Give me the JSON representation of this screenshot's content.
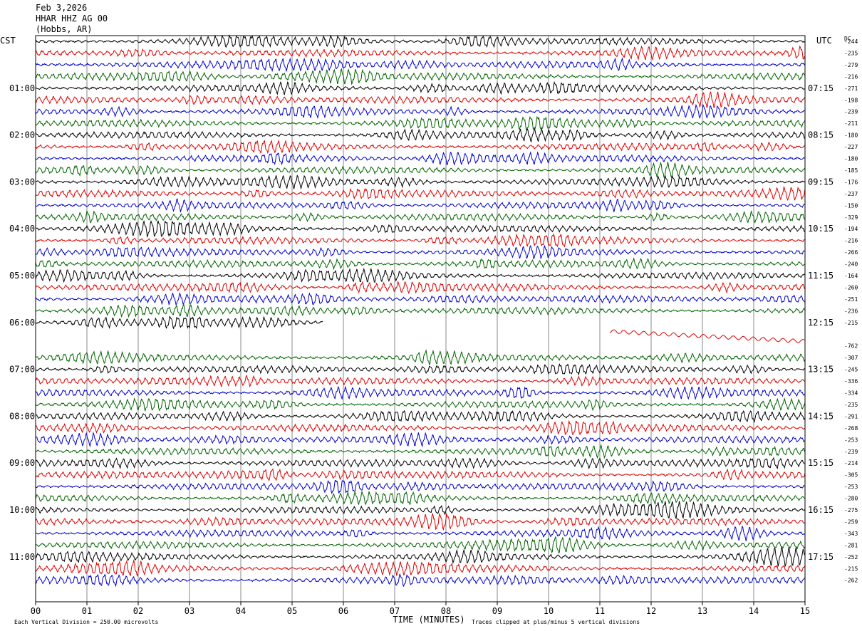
{
  "header": {
    "date": "Feb 3,2026",
    "station": "HHAR HHZ AG 00",
    "location": "(Hobbs, AR)"
  },
  "chart_data": {
    "type": "line",
    "title": "Feb 3,2026",
    "left_tz": "CST",
    "right_tz": "UTC",
    "dc_header": "DC",
    "xlabel": "TIME (MINUTES)",
    "x_ticks": [
      "00",
      "01",
      "02",
      "03",
      "04",
      "05",
      "06",
      "07",
      "08",
      "09",
      "10",
      "11",
      "12",
      "13",
      "14",
      "15"
    ],
    "xlim": [
      0,
      15
    ],
    "left_hour_labels": [
      "01:00",
      "02:00",
      "03:00",
      "04:00",
      "05:00",
      "06:00",
      "07:00",
      "08:00",
      "09:00",
      "10:00",
      "11:00"
    ],
    "right_hour_labels": [
      "07:15",
      "08:15",
      "09:15",
      "10:15",
      "11:15",
      "12:15",
      "13:15",
      "14:15",
      "15:15",
      "16:15",
      "17:15"
    ],
    "trace_colors": [
      "#000000",
      "#e00000",
      "#0000cc",
      "#006400"
    ],
    "dc_offsets": [
      -244,
      -235,
      -279,
      -216,
      -271,
      -198,
      -239,
      -211,
      -180,
      -227,
      -180,
      -185,
      -176,
      -237,
      -150,
      -329,
      -194,
      -216,
      -266,
      -240,
      -164,
      -260,
      -251,
      -236,
      -215,
      null,
      -762,
      -307,
      -245,
      -336,
      -334,
      -235,
      -291,
      -268,
      -253,
      -239,
      -214,
      -305,
      -253,
      -280,
      -275,
      -259,
      -343,
      -281,
      -252,
      -215,
      -262
    ],
    "gap_note": "trace row 24 ends at minute 5.6; row 25 starts at minute 11.2; row 26 blank",
    "scale_note": "Each Vertical Division =  250.00 microvolts",
    "clip_note": "Traces clipped at plus/minus 5 vertical divisions"
  }
}
